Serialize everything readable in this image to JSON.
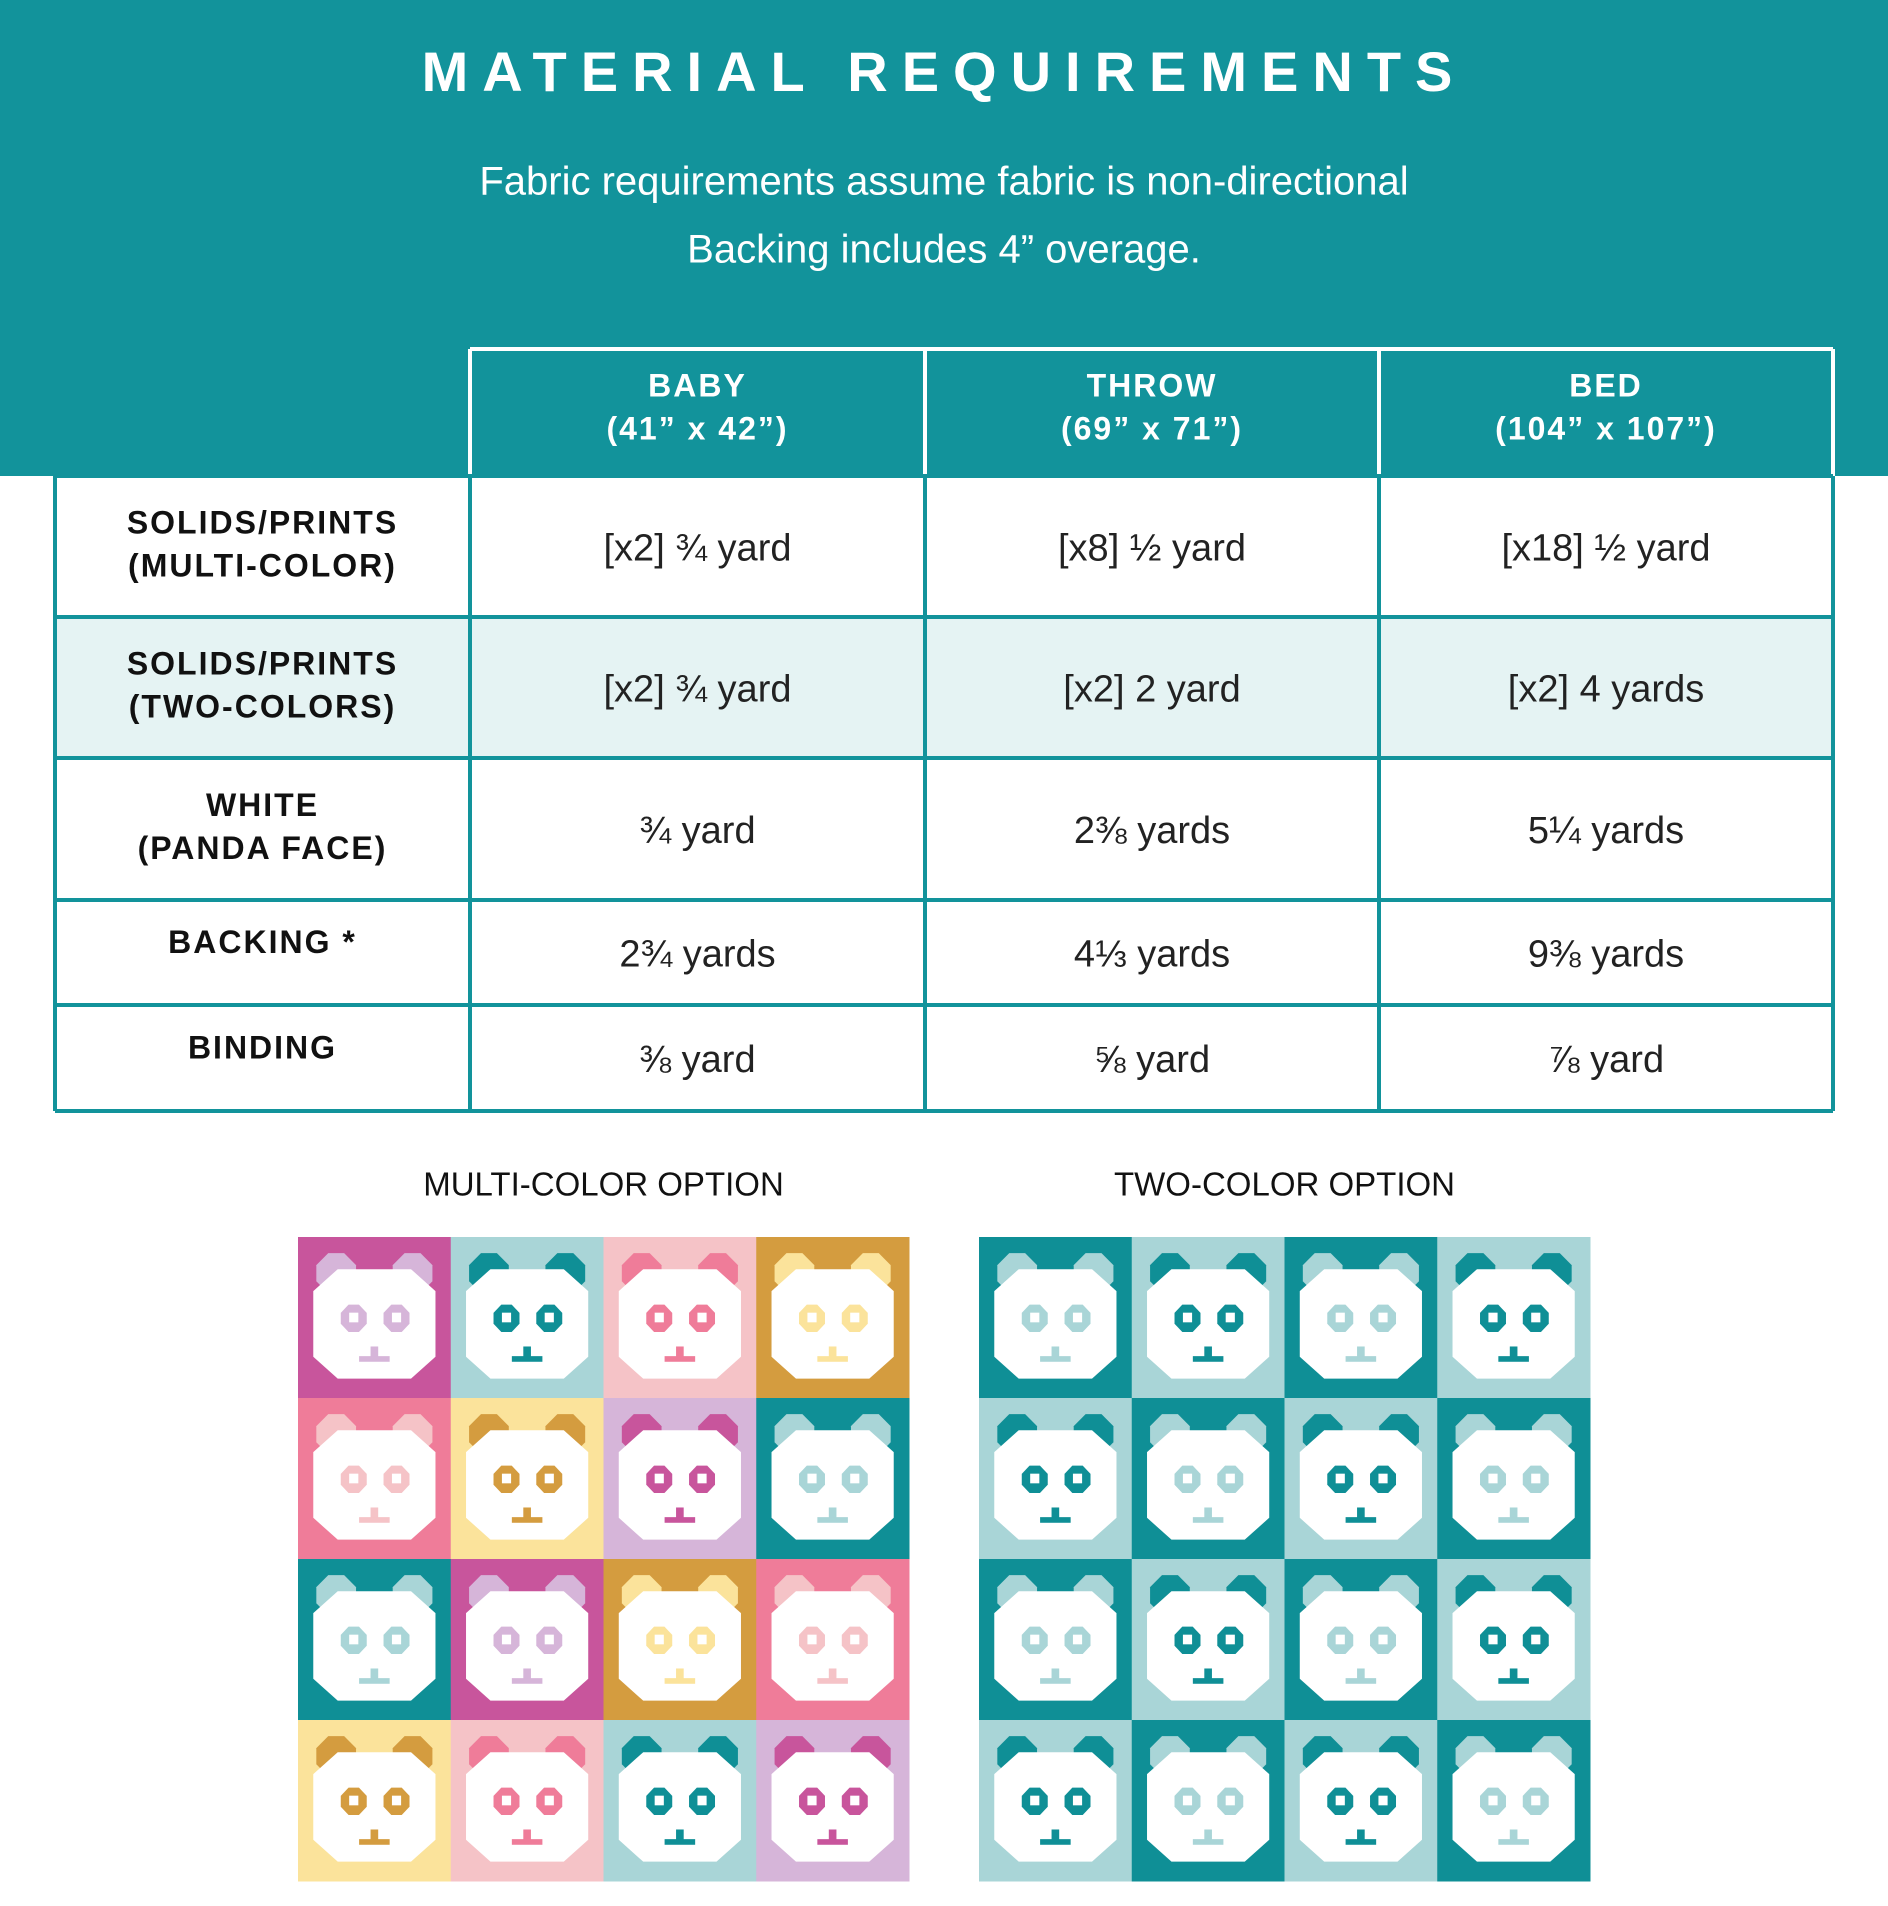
{
  "header": {
    "title": "MATERIAL REQUIREMENTS",
    "subtitle_lines": [
      "Fabric requirements assume fabric is non-directional",
      "Backing includes 4” overage."
    ]
  },
  "table": {
    "columns": [
      {
        "name": "BABY",
        "size": "(41” x 42”)"
      },
      {
        "name": "THROW",
        "size": "(69” x 71”)"
      },
      {
        "name": "BED",
        "size": "(104” x 107”)"
      }
    ],
    "rows": [
      {
        "label": [
          "SOLIDS/PRINTS",
          "(MULTI-COLOR)"
        ],
        "cells": [
          "[x2] ¾ yard",
          "[x8] ½ yard",
          "[x18] ½ yard"
        ]
      },
      {
        "label": [
          "SOLIDS/PRINTS",
          "(TWO-COLORS)"
        ],
        "cells": [
          "[x2] ¾ yard",
          "[x2] 2 yard",
          "[x2] 4 yards"
        ]
      },
      {
        "label": [
          "WHITE",
          "(PANDA FACE)"
        ],
        "cells": [
          "¾ yard",
          "2⅜ yards",
          "5¼ yards"
        ]
      },
      {
        "label": [
          "BACKING *"
        ],
        "cells": [
          "2¾ yards",
          "4⅓ yards",
          "9⅜ yards"
        ]
      },
      {
        "label": [
          "BINDING"
        ],
        "cells": [
          "⅜ yard",
          "⅝ yard",
          "⅞ yard"
        ]
      }
    ]
  },
  "options": [
    {
      "title": "MULTI-COLOR OPTION"
    },
    {
      "title": "TWO-COLOR OPTION"
    }
  ]
}
